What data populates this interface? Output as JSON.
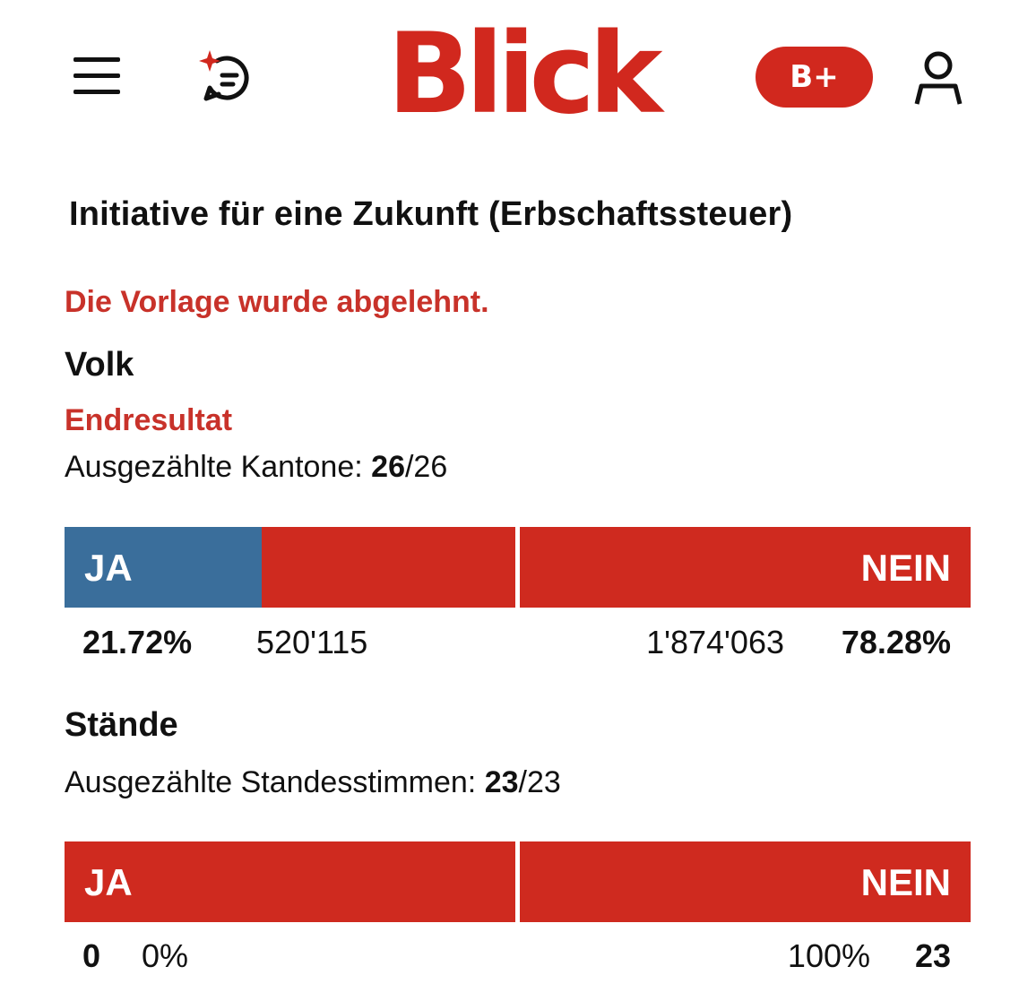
{
  "header": {
    "logo": "Blick",
    "plus_label": "B+",
    "icons": [
      "menu-icon",
      "chat-sparkle-icon",
      "user-icon"
    ],
    "colors": {
      "brand_red": "#d1281e",
      "yes_blue": "#3a6e9b"
    }
  },
  "page": {
    "title": "Initiative für eine Zukunft (Erbschaftssteuer)",
    "result": "Die Vorlage wurde abgelehnt."
  },
  "volk": {
    "title": "Volk",
    "status": "Endresultat",
    "counted_label": "Ausgezählte Kantone:",
    "counted_done": "26",
    "counted_total": "/26",
    "yes_label": "JA",
    "no_label": "NEIN",
    "yes_percent": "21.72%",
    "yes_votes": "520'115",
    "no_votes": "1'874'063",
    "no_percent": "78.28%",
    "yes_share": 0.2172
  },
  "staende": {
    "title": "Stände",
    "counted_label": "Ausgezählte Standesstimmen:",
    "counted_done": "23",
    "counted_total": "/23",
    "yes_label": "JA",
    "no_label": "NEIN",
    "yes_count": "0",
    "yes_percent": "0%",
    "no_percent": "100%",
    "no_count": "23",
    "yes_share": 0
  }
}
